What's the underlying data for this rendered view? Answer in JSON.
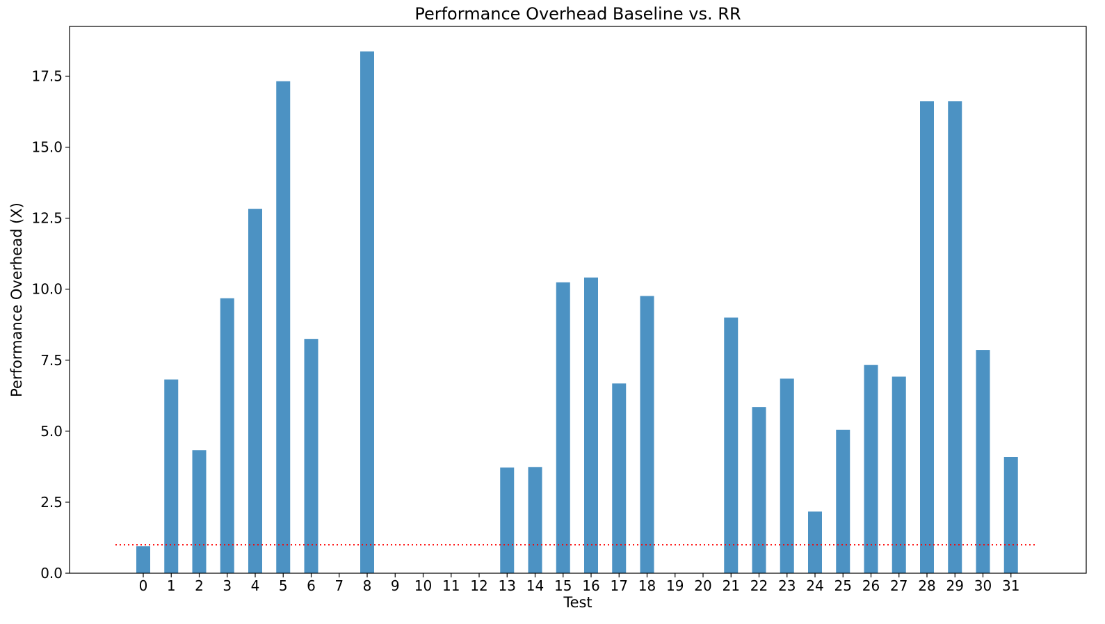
{
  "chart_data": {
    "type": "bar",
    "title": "Performance Overhead Baseline vs. RR",
    "xlabel": "Test",
    "ylabel": "Performance Overhead (X)",
    "categories": [
      "0",
      "1",
      "2",
      "3",
      "4",
      "5",
      "6",
      "7",
      "8",
      "9",
      "10",
      "11",
      "12",
      "13",
      "14",
      "15",
      "16",
      "17",
      "18",
      "19",
      "20",
      "21",
      "22",
      "23",
      "24",
      "25",
      "26",
      "27",
      "28",
      "29",
      "30",
      "31"
    ],
    "values": [
      0.95,
      6.82,
      4.33,
      9.68,
      12.83,
      17.32,
      8.25,
      0,
      18.37,
      0,
      0,
      0,
      0,
      3.72,
      3.74,
      10.24,
      10.41,
      6.68,
      9.76,
      0,
      0,
      9.0,
      5.85,
      6.85,
      2.17,
      5.05,
      7.33,
      6.92,
      16.62,
      16.62,
      7.86,
      4.09
    ],
    "ylim": [
      0,
      19.25
    ],
    "yticks": [
      "0.0",
      "2.5",
      "5.0",
      "7.5",
      "10.0",
      "12.5",
      "15.0",
      "17.5"
    ],
    "reference_line": {
      "y": 1.0,
      "style": "dotted",
      "color": "#ff0000"
    },
    "bar_color": "#1f77b4",
    "grid": false,
    "legend": "none"
  }
}
